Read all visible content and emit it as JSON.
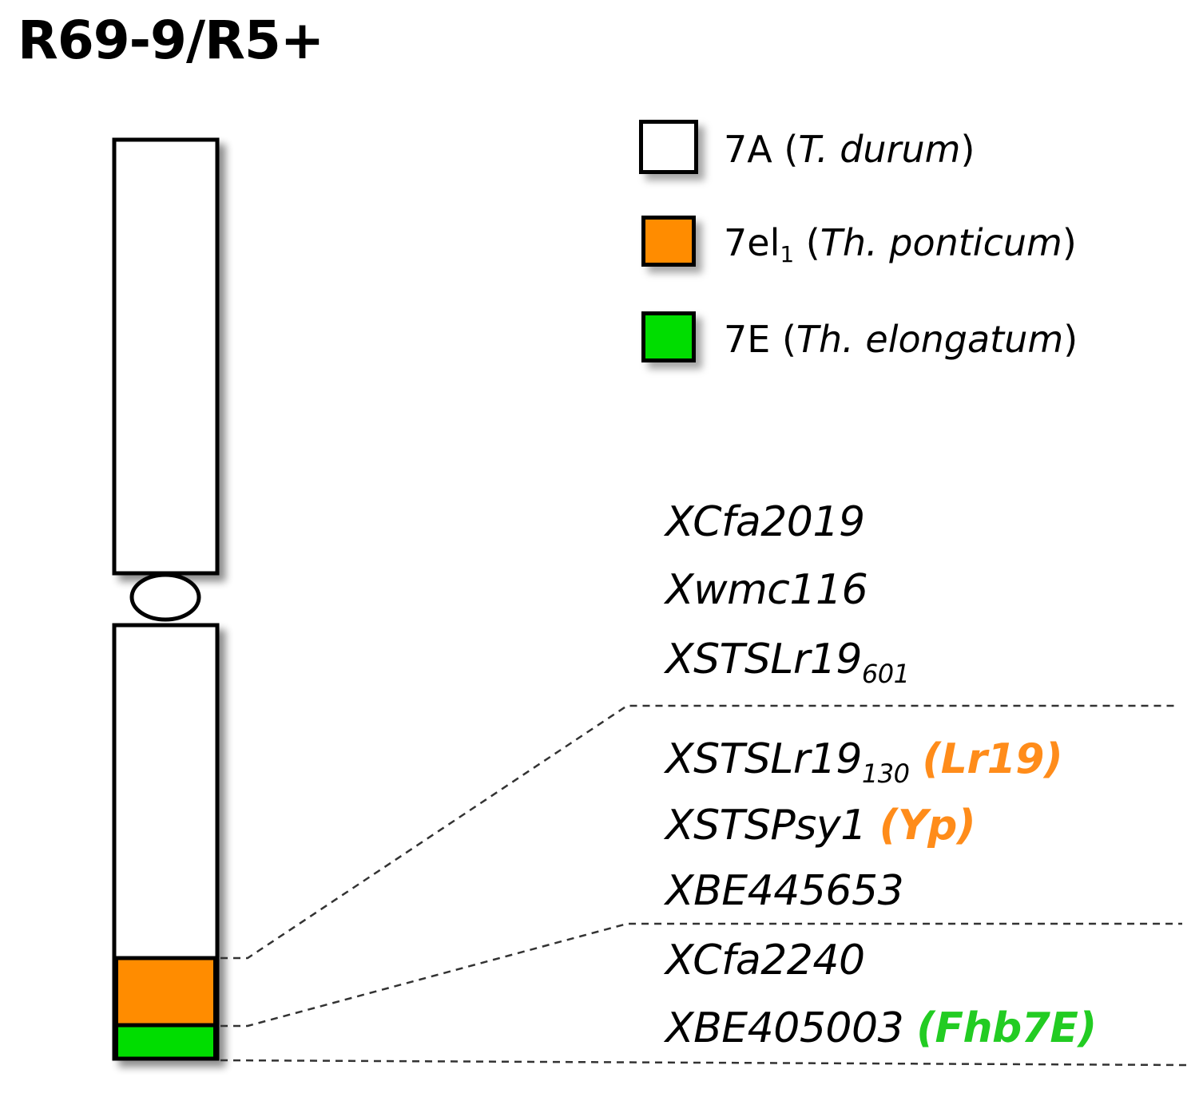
{
  "title": "R69-9/R5+",
  "legend": [
    {
      "chrom": "7A",
      "sub": "",
      "species": "T. durum",
      "color": "#ffffff"
    },
    {
      "chrom": "7el",
      "sub": "1",
      "species": "Th. ponticum",
      "color": "#ff8c00"
    },
    {
      "chrom": "7E",
      "sub": "",
      "species": "Th. elongatum",
      "color": "#00dd00"
    }
  ],
  "markers": [
    {
      "name": "XCfa2019",
      "sub": "",
      "gene": "",
      "gene_color": ""
    },
    {
      "name": "Xwmc116",
      "sub": "",
      "gene": "",
      "gene_color": ""
    },
    {
      "name": "XSTSLr19",
      "sub": "601",
      "gene": "",
      "gene_color": ""
    },
    {
      "name": "XSTSLr19",
      "sub": "130",
      "gene": "(Lr19)",
      "gene_color": "#ff8c1a"
    },
    {
      "name": "XSTSPsy1",
      "sub": "",
      "gene": "(Yp)",
      "gene_color": "#ff8c1a"
    },
    {
      "name": "XBE445653",
      "sub": "",
      "gene": "",
      "gene_color": ""
    },
    {
      "name": "XCfa2240",
      "sub": "",
      "gene": "",
      "gene_color": ""
    },
    {
      "name": "XBE405003",
      "sub": "",
      "gene": "(Fhb7E)",
      "gene_color": "#22cc22"
    }
  ]
}
